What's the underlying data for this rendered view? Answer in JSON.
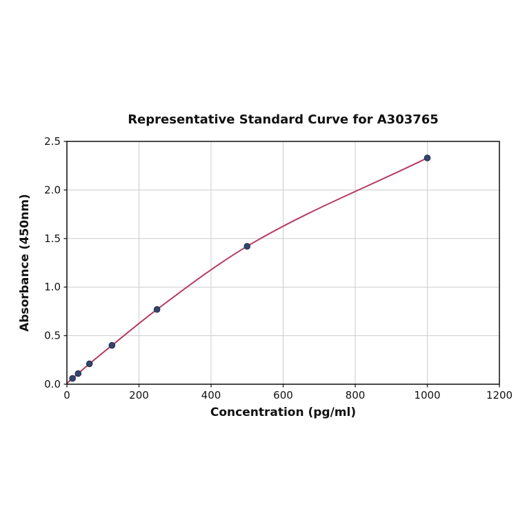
{
  "chart_data": {
    "type": "line",
    "title": "Representative Standard Curve for A303765",
    "xlabel": "Concentration (pg/ml)",
    "ylabel": "Absorbance (450nm)",
    "xlim": [
      0,
      1200
    ],
    "ylim": [
      0,
      2.5
    ],
    "x_ticks": [
      "0",
      "200",
      "400",
      "600",
      "800",
      "1000",
      "1200"
    ],
    "y_ticks": [
      "0.0",
      "0.5",
      "1.0",
      "1.5",
      "2.0",
      "2.5"
    ],
    "grid": true,
    "legend": "none",
    "curve_start": {
      "x": 0,
      "y": 0.01
    },
    "points": [
      {
        "x": 15.6,
        "y": 0.06
      },
      {
        "x": 31.2,
        "y": 0.11
      },
      {
        "x": 62.5,
        "y": 0.21
      },
      {
        "x": 125,
        "y": 0.4
      },
      {
        "x": 250,
        "y": 0.77
      },
      {
        "x": 500,
        "y": 1.42
      },
      {
        "x": 1000,
        "y": 2.33
      }
    ],
    "colors": {
      "line": "#b53a61",
      "marker_fill": "#33456b",
      "marker_edge": "#1f2c4a",
      "grid": "#cbcbcb",
      "spine": "#1a1a1a",
      "text": "#111111",
      "background": "#ffffff"
    }
  }
}
